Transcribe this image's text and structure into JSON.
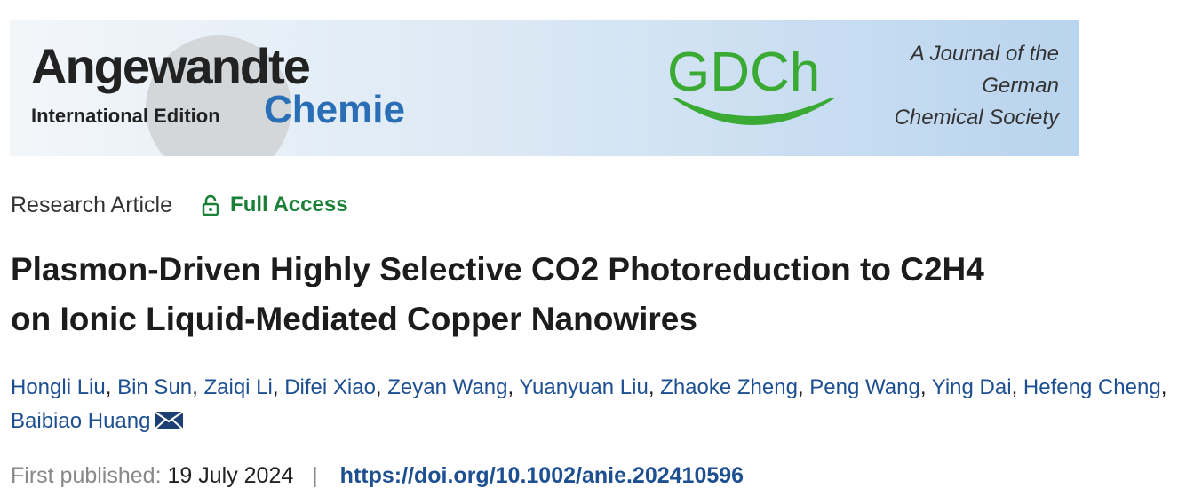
{
  "banner": {
    "journal_name": "Angewandte",
    "journal_subname": "Chemie",
    "edition": "International Edition",
    "society_logo": "GDCh",
    "tagline": [
      "A Journal of the",
      "German",
      "Chemical Society"
    ]
  },
  "article_type": "Research Article",
  "access": "Full Access",
  "title_lines": [
    "Plasmon-Driven Highly Selective CO2 Photoreduction to C2H4",
    "on Ionic Liquid-Mediated Copper Nanowires"
  ],
  "authors": {
    "names": [
      "Hongli Liu",
      "Bin Sun",
      "Zaiqi Li",
      "Difei Xiao",
      "Zeyan Wang",
      "Yuanyuan Liu",
      "Zhaoke Zheng",
      "Peng Wang",
      "Ying Dai",
      "Hefeng Cheng",
      "Baibiao Huang"
    ],
    "separator": ","
  },
  "published": {
    "label": "First published:",
    "date": "19 July 2024",
    "separator": "|",
    "doi": "https://doi.org/10.1002/anie.202410596"
  }
}
